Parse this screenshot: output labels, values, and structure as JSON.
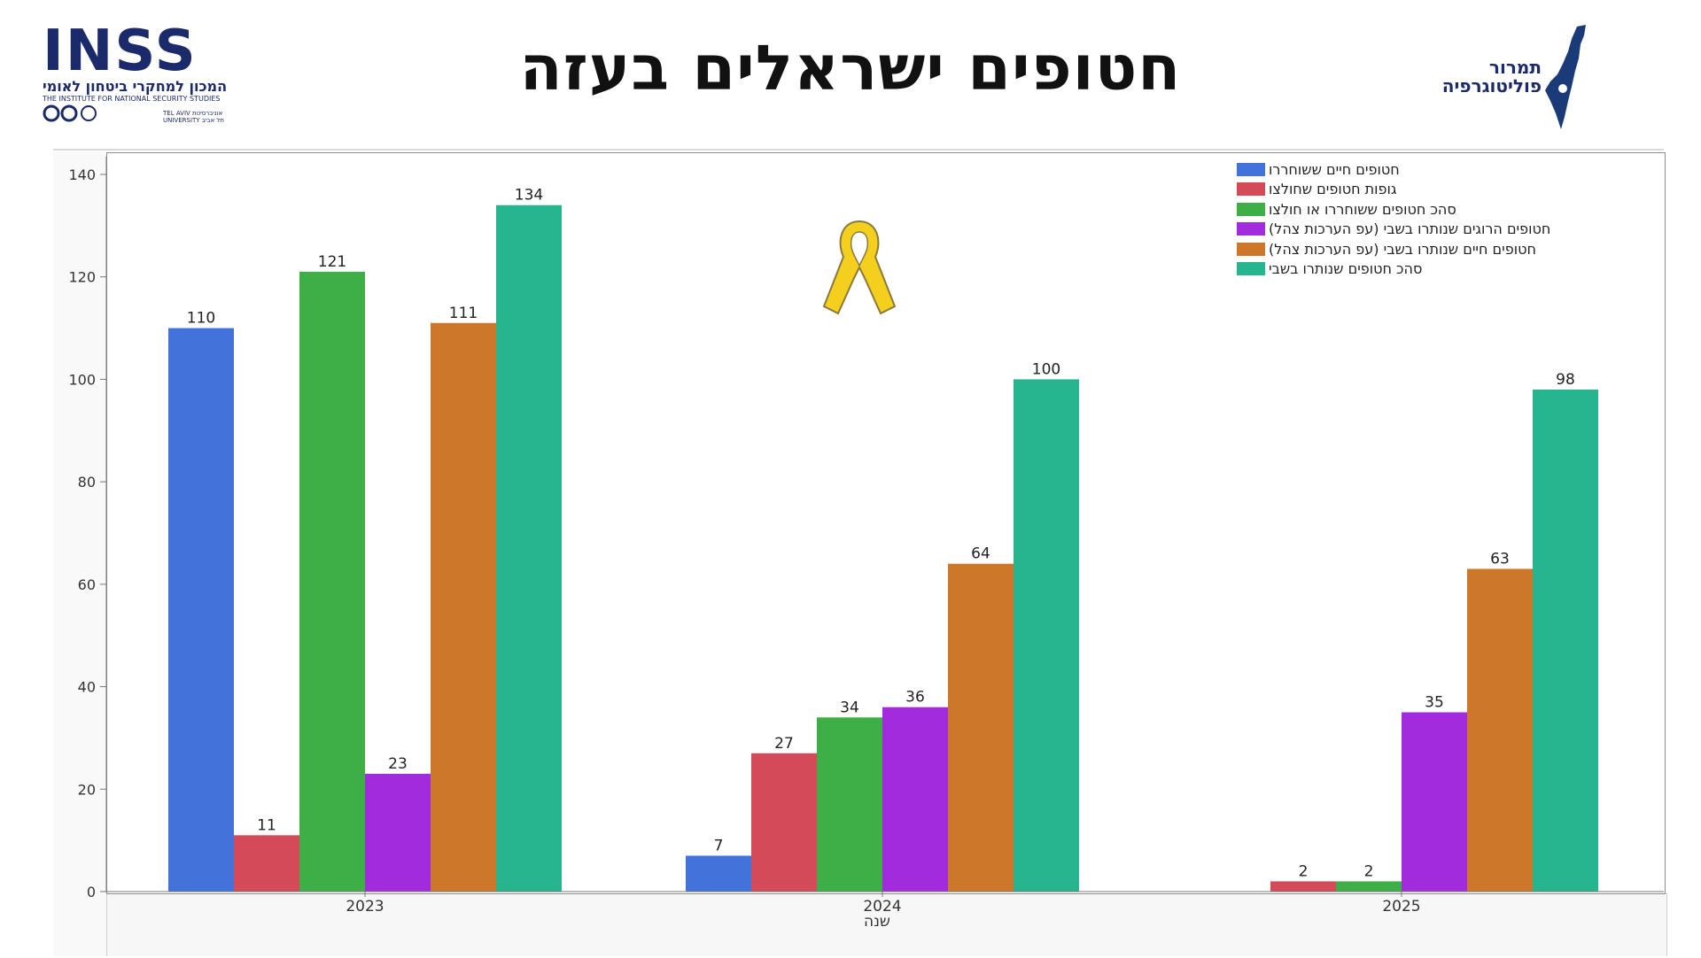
{
  "page": {
    "title": "חטופים ישראלים בעזה"
  },
  "logos": {
    "inss_mark": "INSS",
    "inss_hebrew": "המכון למחקרי ביטחון לאומי",
    "inss_english": "THE INSTITUTE FOR NATIONAL SECURITY STUDIES",
    "university_line1": "TEL AVIV אוניברסיטת",
    "university_line2": "UNIVERSITY תל אביב",
    "partner_line1": "תמרור",
    "partner_line2": "פוליטוגרפיה"
  },
  "ribbon_icon": "yellow-ribbon",
  "chart_data": {
    "type": "bar",
    "xlabel": "שנה",
    "ylabel": "",
    "ylim": [
      0,
      140
    ],
    "yticks": [
      0,
      20,
      40,
      60,
      80,
      100,
      120,
      140
    ],
    "categories": [
      "2023",
      "2024",
      "2025"
    ],
    "legend_position": "top-right",
    "grid": false,
    "series": [
      {
        "name": "חטופים חיים ששוחררו",
        "color": "#4472db",
        "values": [
          110,
          7,
          null
        ]
      },
      {
        "name": "גופות חטופים שחולצו",
        "color": "#d54a58",
        "values": [
          11,
          27,
          2
        ]
      },
      {
        "name": "סהכ חטופים ששוחררו או חולצו",
        "color": "#3daf46",
        "values": [
          121,
          34,
          2
        ]
      },
      {
        "name": "חטופים הרוגים שנותרו בשבי (עפ הערכות צהל)",
        "color": "#a22bdd",
        "values": [
          23,
          36,
          35
        ]
      },
      {
        "name": "חטופים חיים שנותרו בשבי (עפ הערכות צהל)",
        "color": "#cc772a",
        "values": [
          111,
          64,
          63
        ]
      },
      {
        "name": "סהכ חטופים שנותרו בשבי",
        "color": "#27b590",
        "values": [
          134,
          100,
          98
        ]
      }
    ]
  }
}
